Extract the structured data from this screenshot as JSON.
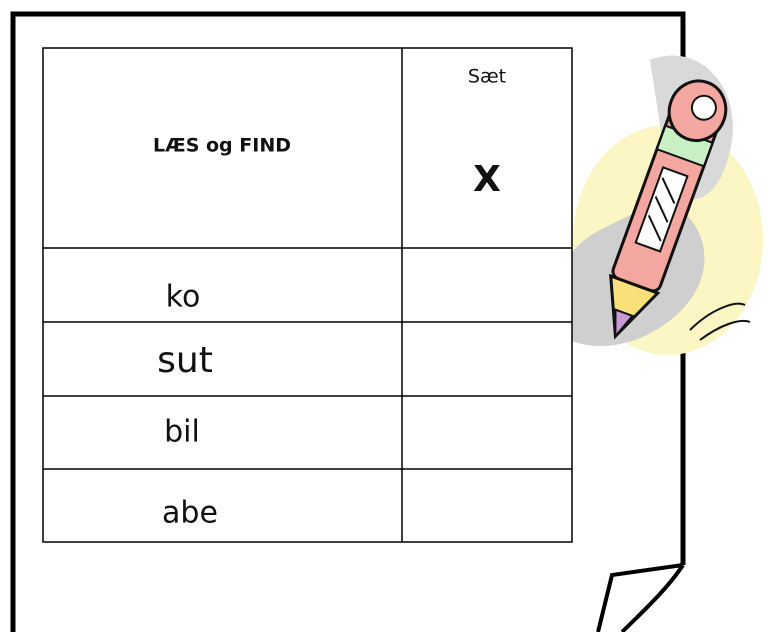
{
  "table": {
    "header": {
      "title": "LÆS og FIND",
      "mark_title": "Sæt",
      "mark_symbol": "X"
    },
    "rows": [
      [
        "ko"
      ],
      [
        "sut"
      ],
      [
        "bil"
      ],
      [
        "abe"
      ]
    ]
  }
}
